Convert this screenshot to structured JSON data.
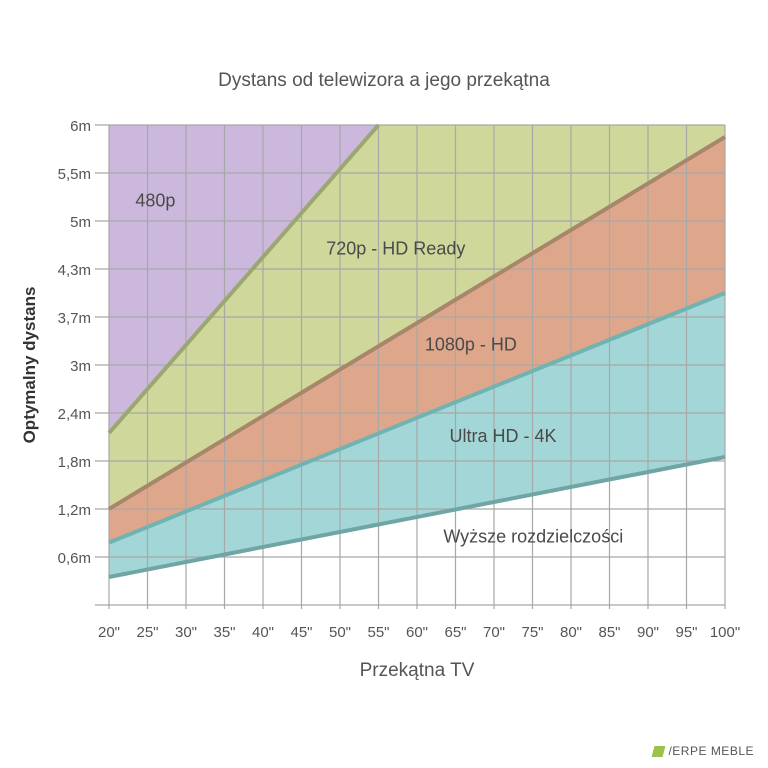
{
  "chart_data": {
    "type": "area",
    "title": "Dystans od telewizora a jego przekątna",
    "xlabel": "Przekątna TV",
    "ylabel": "Optymalny dystans",
    "x_ticks": [
      "20\"",
      "25\"",
      "30\"",
      "35\"",
      "40\"",
      "45\"",
      "50\"",
      "55\"",
      "60\"",
      "65\"",
      "70\"",
      "75\"",
      "80\"",
      "85\"",
      "90\"",
      "95\"",
      "100\""
    ],
    "x_values": [
      20,
      25,
      30,
      35,
      40,
      45,
      50,
      55,
      60,
      65,
      70,
      75,
      80,
      85,
      90,
      95,
      100
    ],
    "y_ticks": [
      "6m",
      "5,5m",
      "5m",
      "4,3m",
      "3,7m",
      "3m",
      "2,4m",
      "1,8m",
      "1,2m",
      "0,6m"
    ],
    "xlim": [
      20,
      100
    ],
    "grid": true,
    "legend": "inline labels",
    "regions": [
      {
        "name": "480p",
        "color": "#cbb8dc",
        "label_pos": [
          0.02,
          0.83
        ]
      },
      {
        "name": "720p - HD Ready",
        "color": "#cfd89a",
        "label_pos": [
          0.33,
          0.73
        ]
      },
      {
        "name": "1080p - HD",
        "color": "#dea78c",
        "label_pos": [
          0.49,
          0.53
        ]
      },
      {
        "name": "Ultra HD - 4K",
        "color": "#a3d6d6",
        "label_pos": [
          0.53,
          0.34
        ]
      },
      {
        "name": "Wyższe rozdzielczości",
        "color": "#ffffff",
        "label_pos": [
          0.52,
          0.13
        ]
      }
    ],
    "boundaries": [
      {
        "between": [
          "480p",
          "720p - HD Ready"
        ],
        "color": "#9aa870",
        "points": [
          [
            20,
            2.15
          ],
          [
            55,
            6.0
          ]
        ]
      },
      {
        "between": [
          "720p - HD Ready",
          "1080p - HD"
        ],
        "color": "#a8866a",
        "points": [
          [
            20,
            1.2
          ],
          [
            100,
            5.85
          ]
        ]
      },
      {
        "between": [
          "1080p - HD",
          "Ultra HD - 4K"
        ],
        "color": "#6fb3b3",
        "points": [
          [
            20,
            0.78
          ],
          [
            100,
            3.9
          ]
        ]
      },
      {
        "between": [
          "Ultra HD - 4K",
          "Wyższe rozdzielczości"
        ],
        "color": "#6fa5a5",
        "points": [
          [
            20,
            0.35
          ],
          [
            100,
            1.85
          ]
        ]
      }
    ]
  },
  "brand": {
    "name": "/ERPE MEBLE"
  }
}
